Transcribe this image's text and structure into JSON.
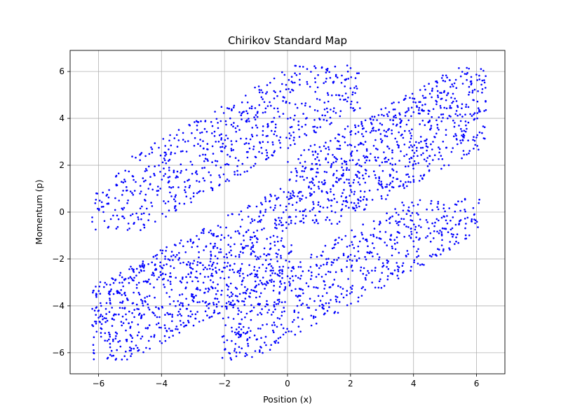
{
  "chart_data": {
    "type": "scatter",
    "title": "Chirikov Standard Map",
    "xlabel": "Position (x)",
    "ylabel": "Momentum (p)",
    "xlim": [
      -6.9,
      6.9
    ],
    "ylim": [
      -6.9,
      6.9
    ],
    "xticks": [
      -6,
      -4,
      -2,
      0,
      2,
      4,
      6
    ],
    "yticks": [
      -6,
      -4,
      -2,
      0,
      2,
      4,
      6
    ],
    "xtick_labels": [
      "−6",
      "−4",
      "−2",
      "0",
      "2",
      "4",
      "6"
    ],
    "ytick_labels": [
      "−6",
      "−4",
      "−2",
      "0",
      "2",
      "4",
      "6"
    ],
    "grid": true,
    "series": [
      {
        "color": "#0000ff",
        "marker": "dot",
        "bands": [
          {
            "x_range": [
              -6.2,
              2.3
            ],
            "centerline": {
              "slope": 0.75,
              "intercept": 4.4
            },
            "thickness": 1.7,
            "y_clip": [
              -0.8,
              6.3
            ],
            "points": 650
          },
          {
            "x_range": [
              -6.2,
              0.2
            ],
            "centerline": {
              "slope": 0.7,
              "intercept": -0.8
            },
            "thickness": 2.0,
            "y_clip": [
              -6.3,
              1.0
            ],
            "points": 850
          },
          {
            "x_range": [
              0.0,
              6.3
            ],
            "centerline": {
              "slope": 0.72,
              "intercept": 0.3
            },
            "thickness": 2.0,
            "y_clip": [
              -0.5,
              6.2
            ],
            "points": 800
          },
          {
            "x_range": [
              -2.1,
              6.1
            ],
            "centerline": {
              "slope": 0.75,
              "intercept": -3.9
            },
            "thickness": 1.6,
            "y_clip": [
              -6.3,
              0.6
            ],
            "points": 650
          }
        ]
      }
    ]
  }
}
